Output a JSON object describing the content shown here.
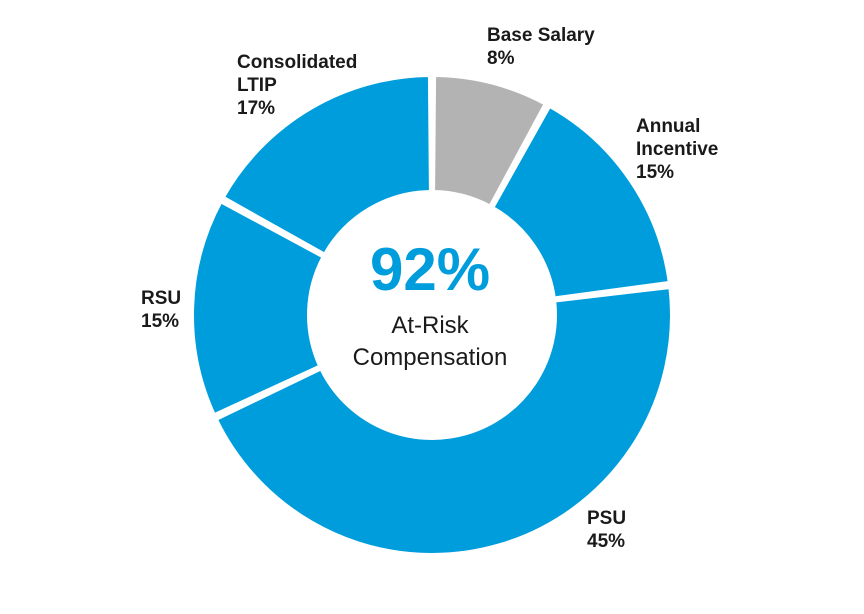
{
  "chart_data": {
    "type": "pie",
    "donut": true,
    "slices": [
      {
        "label_lines": [
          "Base Salary"
        ],
        "pct_label": "8%",
        "value": 8,
        "color": "#b3b3b3"
      },
      {
        "label_lines": [
          "Annual",
          "Incentive"
        ],
        "pct_label": "15%",
        "value": 15,
        "color": "#009ddc"
      },
      {
        "label_lines": [
          "PSU"
        ],
        "pct_label": "45%",
        "value": 45,
        "color": "#009ddc"
      },
      {
        "label_lines": [
          "RSU"
        ],
        "pct_label": "15%",
        "value": 15,
        "color": "#009ddc"
      },
      {
        "label_lines": [
          "Consolidated",
          "LTIP"
        ],
        "pct_label": "17%",
        "value": 17,
        "color": "#009ddc"
      }
    ],
    "center": {
      "value": "92%",
      "line1": "At-Risk",
      "line2": "Compensation",
      "value_color": "#009ddc"
    }
  }
}
